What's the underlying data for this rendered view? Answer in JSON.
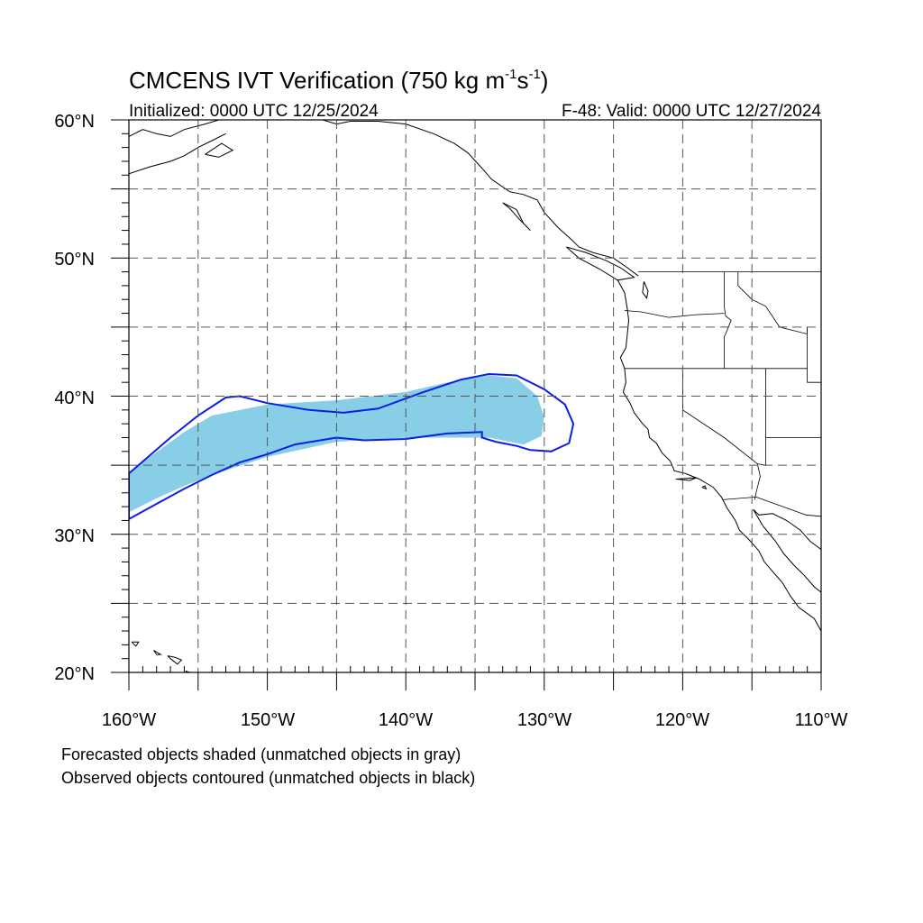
{
  "title": {
    "main": "CMCENS IVT Verification (750 kg m",
    "sup1": "-1",
    "mid": "s",
    "sup2": "-1",
    "end": ")"
  },
  "subtitle_left": "Initialized: 0000 UTC 12/25/2024",
  "subtitle_right": "F-48: Valid: 0000 UTC 12/27/2024",
  "map_extent": {
    "lon_min": -160,
    "lon_max": -110,
    "lat_min": 20,
    "lat_max": 60
  },
  "lat_labels": [
    "20°N",
    "30°N",
    "40°N",
    "50°N",
    "60°N"
  ],
  "lon_labels": [
    "160°W",
    "150°W",
    "140°W",
    "130°W",
    "120°W",
    "110°W"
  ],
  "legend_notes": [
    "Forecasted objects shaded (unmatched objects in gray)",
    "Observed objects contoured (unmatched objects in black)"
  ],
  "colors": {
    "forecast_fill": "#87CEE6",
    "observed_contour": "#0A1EE6",
    "coastline": "#000000",
    "grid": "#555555"
  },
  "objects": {
    "forecast_shaded": {
      "label": "",
      "matched": true,
      "lonlat": [
        [
          -160,
          34.5
        ],
        [
          -156,
          37.4
        ],
        [
          -154,
          38.6
        ],
        [
          -150,
          39.4
        ],
        [
          -145,
          39.7
        ],
        [
          -140,
          40.3
        ],
        [
          -137,
          41.0
        ],
        [
          -134,
          41.5
        ],
        [
          -132,
          41.3
        ],
        [
          -130.5,
          40.0
        ],
        [
          -130,
          38.5
        ],
        [
          -130.2,
          37.1
        ],
        [
          -131.5,
          36.5
        ],
        [
          -134,
          37.0
        ],
        [
          -140,
          37.0
        ],
        [
          -145,
          36.7
        ],
        [
          -150,
          35.6
        ],
        [
          -154,
          34.3
        ],
        [
          -156,
          33.5
        ],
        [
          -158,
          32.6
        ],
        [
          -160,
          31.6
        ]
      ]
    },
    "observed_contour": {
      "label": "",
      "matched": true,
      "lonlat": [
        [
          -160,
          34.4
        ],
        [
          -157,
          37.0
        ],
        [
          -155,
          38.6
        ],
        [
          -153,
          39.9
        ],
        [
          -152,
          40.0
        ],
        [
          -150,
          39.5
        ],
        [
          -147,
          39.0
        ],
        [
          -144.5,
          38.8
        ],
        [
          -142,
          39.1
        ],
        [
          -139,
          40.2
        ],
        [
          -136,
          41.2
        ],
        [
          -134,
          41.6
        ],
        [
          -132,
          41.5
        ],
        [
          -130,
          40.5
        ],
        [
          -128.5,
          39.4
        ],
        [
          -127.9,
          38.0
        ],
        [
          -128.2,
          36.6
        ],
        [
          -129.5,
          36.0
        ],
        [
          -131,
          36.1
        ],
        [
          -132,
          36.4
        ],
        [
          -133.5,
          36.7
        ],
        [
          -134.5,
          37.0
        ],
        [
          -134.5,
          37.4
        ],
        [
          -137,
          37.3
        ],
        [
          -140,
          36.9
        ],
        [
          -143,
          36.8
        ],
        [
          -145,
          37.0
        ],
        [
          -148,
          36.5
        ],
        [
          -150,
          35.8
        ],
        [
          -152,
          35.2
        ],
        [
          -154,
          34.3
        ],
        [
          -156,
          33.3
        ],
        [
          -158,
          32.2
        ],
        [
          -160,
          31.1
        ]
      ]
    }
  },
  "coastlines": [
    [
      [
        -160,
        58.8
      ],
      [
        -159,
        59.3
      ],
      [
        -158,
        59.0
      ],
      [
        -157,
        58.8
      ],
      [
        -156,
        59.3
      ],
      [
        -154.5,
        59.7
      ],
      [
        -153.5,
        60.0
      ]
    ],
    [
      [
        -160,
        56.1
      ],
      [
        -158.5,
        56.6
      ],
      [
        -157,
        57.0
      ],
      [
        -156,
        57.4
      ],
      [
        -155,
        58.0
      ],
      [
        -154,
        58.5
      ],
      [
        -153,
        59.0
      ]
    ],
    [
      [
        -154.5,
        57.5
      ],
      [
        -153.5,
        57.3
      ],
      [
        -152.5,
        57.8
      ],
      [
        -153.3,
        58.3
      ],
      [
        -154.5,
        57.5
      ]
    ],
    [
      [
        -146,
        60.0
      ],
      [
        -145,
        59.7
      ],
      [
        -144,
        59.9
      ],
      [
        -142,
        59.9
      ],
      [
        -140,
        59.7
      ],
      [
        -138,
        59.0
      ],
      [
        -136.5,
        58.3
      ],
      [
        -135.5,
        57.6
      ],
      [
        -134.5,
        56.5
      ],
      [
        -133.8,
        55.7
      ],
      [
        -132.5,
        54.8
      ],
      [
        -131.5,
        54.6
      ],
      [
        -130.5,
        54.2
      ],
      [
        -130.0,
        53.3
      ],
      [
        -129.0,
        52.2
      ],
      [
        -128.0,
        51.3
      ],
      [
        -127.5,
        50.8
      ],
      [
        -126.5,
        50.4
      ],
      [
        -125.0,
        50.0
      ],
      [
        -124.0,
        49.3
      ],
      [
        -123.2,
        48.7
      ]
    ],
    [
      [
        -133.0,
        54.0
      ],
      [
        -132.0,
        53.5
      ],
      [
        -131.5,
        52.5
      ],
      [
        -131.0,
        52.0
      ],
      [
        -131.8,
        52.8
      ],
      [
        -132.5,
        53.6
      ],
      [
        -133.0,
        54.0
      ]
    ],
    [
      [
        -128.4,
        50.8
      ],
      [
        -127.0,
        50.4
      ],
      [
        -125.5,
        49.8
      ],
      [
        -124.5,
        49.3
      ],
      [
        -123.5,
        48.6
      ],
      [
        -124.7,
        48.4
      ],
      [
        -126.0,
        49.2
      ],
      [
        -127.5,
        50.0
      ],
      [
        -128.4,
        50.8
      ]
    ],
    [
      [
        -124.7,
        48.4
      ],
      [
        -124.2,
        47.5
      ],
      [
        -124.0,
        46.3
      ],
      [
        -123.9,
        45.5
      ],
      [
        -124.0,
        44.5
      ],
      [
        -124.1,
        43.5
      ],
      [
        -124.5,
        42.8
      ],
      [
        -124.2,
        42.0
      ],
      [
        -124.1,
        41.0
      ],
      [
        -124.3,
        40.3
      ],
      [
        -123.8,
        39.5
      ],
      [
        -123.5,
        38.8
      ],
      [
        -122.9,
        38.0
      ],
      [
        -122.5,
        37.6
      ],
      [
        -122.4,
        37.0
      ],
      [
        -121.9,
        36.6
      ],
      [
        -121.5,
        35.9
      ],
      [
        -120.9,
        35.3
      ],
      [
        -120.6,
        34.6
      ],
      [
        -119.8,
        34.4
      ],
      [
        -118.8,
        34.0
      ],
      [
        -118.3,
        33.7
      ],
      [
        -117.8,
        33.4
      ],
      [
        -117.2,
        32.7
      ],
      [
        -116.8,
        31.9
      ],
      [
        -116.2,
        31.0
      ],
      [
        -115.9,
        30.3
      ],
      [
        -115.2,
        29.6
      ],
      [
        -114.5,
        28.8
      ],
      [
        -114.1,
        28.0
      ],
      [
        -113.5,
        27.3
      ],
      [
        -112.8,
        26.5
      ],
      [
        -112.2,
        25.5
      ],
      [
        -111.6,
        24.7
      ],
      [
        -110.5,
        23.9
      ],
      [
        -110.0,
        23.0
      ]
    ],
    [
      [
        -114.9,
        31.8
      ],
      [
        -114.2,
        30.6
      ],
      [
        -113.3,
        29.5
      ],
      [
        -112.7,
        28.6
      ],
      [
        -112.0,
        27.8
      ],
      [
        -111.2,
        27.0
      ],
      [
        -110.5,
        26.2
      ],
      [
        -110,
        25.8
      ]
    ],
    [
      [
        -114.9,
        31.8
      ],
      [
        -114.5,
        31.4
      ],
      [
        -113.5,
        31.5
      ],
      [
        -112.5,
        31.0
      ],
      [
        -111.5,
        30.3
      ],
      [
        -110.8,
        29.5
      ],
      [
        -110,
        28.9
      ]
    ],
    [
      [
        -122.8,
        48.3
      ],
      [
        -122.5,
        47.6
      ],
      [
        -122.6,
        47.1
      ],
      [
        -122.9,
        47.5
      ],
      [
        -122.8,
        48.3
      ]
    ],
    [
      [
        -120.5,
        34.0
      ],
      [
        -119.5,
        33.9
      ],
      [
        -119.0,
        34.1
      ],
      [
        -120.5,
        34.0
      ]
    ],
    [
      [
        -118.6,
        33.4
      ],
      [
        -118.3,
        33.3
      ],
      [
        -118.4,
        33.5
      ],
      [
        -118.6,
        33.4
      ]
    ],
    [
      [
        -159.8,
        22.2
      ],
      [
        -159.3,
        22.2
      ],
      [
        -159.5,
        21.9
      ],
      [
        -159.8,
        22.2
      ]
    ],
    [
      [
        -158.2,
        21.6
      ],
      [
        -157.7,
        21.3
      ],
      [
        -158.0,
        21.3
      ],
      [
        -158.2,
        21.6
      ]
    ],
    [
      [
        -157.2,
        21.2
      ],
      [
        -156.7,
        21.1
      ],
      [
        -156.2,
        20.9
      ],
      [
        -156.5,
        20.6
      ],
      [
        -157.0,
        21.0
      ],
      [
        -157.2,
        21.2
      ]
    ],
    [
      [
        -155.9,
        20.1
      ],
      [
        -155.0,
        19.8
      ],
      [
        -155.3,
        19.4
      ],
      [
        -155.9,
        20.1
      ]
    ]
  ],
  "borders": [
    [
      [
        -123.2,
        49.0
      ],
      [
        -117,
        49.0
      ],
      [
        -110,
        49.0
      ]
    ],
    [
      [
        -117.0,
        49.0
      ],
      [
        -117.0,
        46.5
      ],
      [
        -116.9,
        45.8
      ],
      [
        -116.5,
        45.5
      ],
      [
        -116.9,
        44.5
      ],
      [
        -117.0,
        44.3
      ],
      [
        -117.0,
        42.0
      ]
    ],
    [
      [
        -124.2,
        46.2
      ],
      [
        -123,
        46.1
      ],
      [
        -121,
        45.7
      ],
      [
        -119,
        45.9
      ],
      [
        -117,
        46.0
      ]
    ],
    [
      [
        -124.2,
        42.0
      ],
      [
        -120,
        42.0
      ],
      [
        -117,
        42.0
      ],
      [
        -114,
        42.0
      ],
      [
        -111,
        42.0
      ]
    ],
    [
      [
        -120.0,
        42.0
      ],
      [
        -120.0,
        39.0
      ],
      [
        -117.0,
        37.0
      ],
      [
        -114.6,
        35.1
      ]
    ],
    [
      [
        -114.6,
        35.1
      ],
      [
        -114.4,
        34.2
      ],
      [
        -114.7,
        33.0
      ],
      [
        -114.8,
        32.5
      ]
    ],
    [
      [
        -117.1,
        32.5
      ],
      [
        -114.7,
        32.7
      ],
      [
        -111.1,
        31.4
      ],
      [
        -110,
        31.3
      ]
    ],
    [
      [
        -114.0,
        42.0
      ],
      [
        -114.0,
        37.0
      ],
      [
        -114.0,
        35.0
      ],
      [
        -114.6,
        35.1
      ]
    ],
    [
      [
        -114.0,
        37.0
      ],
      [
        -110,
        37.0
      ]
    ],
    [
      [
        -116.0,
        49.0
      ],
      [
        -116.0,
        48.0
      ],
      [
        -115.0,
        47.0
      ],
      [
        -114.0,
        46.5
      ],
      [
        -113.0,
        45.0
      ],
      [
        -111.0,
        44.5
      ],
      [
        -111.0,
        45.0
      ]
    ],
    [
      [
        -111.0,
        45.0
      ],
      [
        -111.0,
        41.0
      ],
      [
        -110,
        41.0
      ]
    ]
  ]
}
